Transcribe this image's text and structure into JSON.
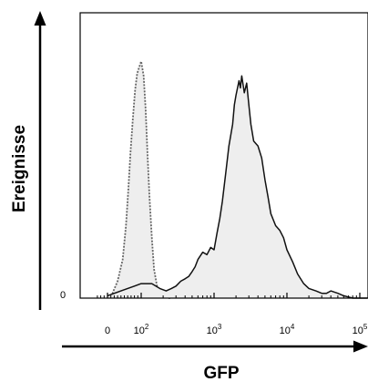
{
  "chart_data": {
    "type": "area",
    "title": "",
    "xlabel": "GFP",
    "ylabel": "Ereignisse",
    "x_scale": "biexponential",
    "xlim": [
      -30,
      200000
    ],
    "ylim": [
      0,
      100
    ],
    "y_tick_labels": [
      "0"
    ],
    "x_tick_labels": [
      {
        "base": "0",
        "exp": ""
      },
      {
        "base": "10",
        "exp": "2"
      },
      {
        "base": "10",
        "exp": "3"
      },
      {
        "base": "10",
        "exp": "4"
      },
      {
        "base": "10",
        "exp": "5"
      }
    ],
    "x_tick_values": [
      0,
      100,
      1000,
      10000,
      100000
    ],
    "grid": false,
    "legend": "none",
    "series": [
      {
        "style": "dotted",
        "stroke": "#666666",
        "fill": "#eeeeee",
        "x": [
          0,
          15,
          30,
          45,
          55,
          62,
          68,
          75,
          82,
          88,
          95,
          100,
          108,
          115,
          122,
          130,
          140,
          150,
          165,
          180,
          200,
          230,
          260
        ],
        "y": [
          0,
          2,
          7,
          16,
          30,
          45,
          60,
          74,
          86,
          93,
          96,
          98,
          92,
          78,
          60,
          42,
          25,
          12,
          5,
          2,
          1,
          0,
          0
        ]
      },
      {
        "style": "solid",
        "stroke": "#111111",
        "fill": "#eeeeee",
        "x": [
          0,
          40,
          80,
          100,
          140,
          180,
          220,
          260,
          300,
          350,
          400,
          450,
          500,
          550,
          600,
          700,
          800,
          900,
          1000,
          1100,
          1200,
          1300,
          1450,
          1600,
          1800,
          1900,
          2000,
          2200,
          2300,
          2400,
          2600,
          2800,
          3000,
          3200,
          3500,
          4000,
          4500,
          5000,
          5500,
          6000,
          7000,
          8000,
          9000,
          10000,
          12000,
          14000,
          17000,
          20000,
          25000,
          30000,
          35000,
          40000,
          50000,
          60000,
          80000,
          100000,
          200000
        ],
        "y": [
          1,
          3,
          5,
          6,
          6,
          4,
          3,
          4,
          5,
          7,
          8,
          9,
          11,
          13,
          16,
          19,
          18,
          21,
          20,
          27,
          33,
          40,
          52,
          63,
          72,
          80,
          84,
          90,
          87,
          92,
          85,
          89,
          80,
          72,
          65,
          63,
          58,
          49,
          42,
          35,
          30,
          28,
          25,
          20,
          15,
          10,
          6,
          4,
          3,
          2,
          2,
          3,
          2,
          1,
          0,
          0,
          0
        ]
      }
    ]
  }
}
